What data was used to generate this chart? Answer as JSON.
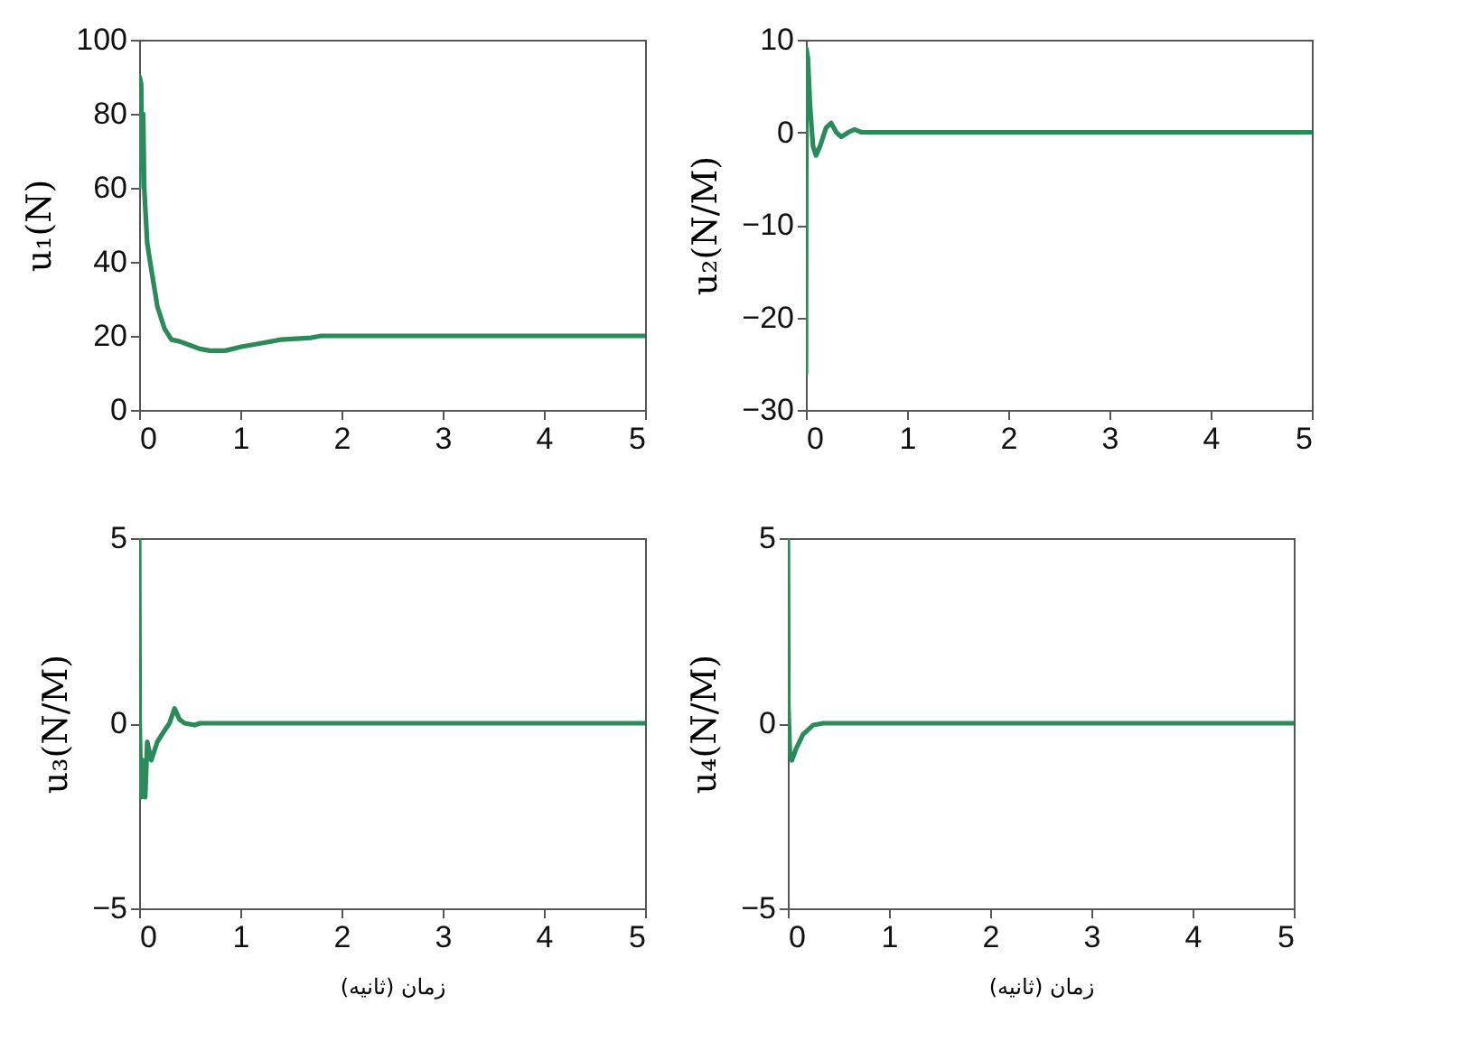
{
  "chart_data": [
    {
      "type": "line",
      "ylabel": "u₁(N)",
      "xlim": [
        0,
        5
      ],
      "xticks": [
        0,
        1,
        2,
        3,
        4,
        5
      ],
      "ylim": [
        0,
        100
      ],
      "yticks": [
        0,
        20,
        40,
        60,
        80,
        100
      ],
      "grid": false,
      "x": [
        0,
        0.005,
        0.02,
        0.03,
        0.04,
        0.05,
        0.08,
        0.12,
        0.18,
        0.25,
        0.32,
        0.4,
        0.5,
        0.6,
        0.7,
        0.85,
        1,
        1.2,
        1.4,
        1.7,
        1.8,
        2.5,
        5
      ],
      "series": [
        {
          "color": "#2a8a5a",
          "values": [
            60,
            90,
            88,
            65,
            80,
            60,
            45,
            38,
            28,
            22,
            19,
            18.5,
            17.5,
            16.5,
            16,
            16,
            17,
            18,
            19,
            19.5,
            20,
            20,
            20
          ]
        }
      ]
    },
    {
      "type": "line",
      "ylabel": "u₂(N/M)",
      "xlim": [
        0,
        5
      ],
      "xticks": [
        0,
        1,
        2,
        3,
        4,
        5
      ],
      "ylim": [
        -30,
        10
      ],
      "yticks": [
        -30,
        -20,
        -10,
        0,
        10
      ],
      "grid": false,
      "x": [
        0,
        0.005,
        0.02,
        0.04,
        0.07,
        0.1,
        0.14,
        0.2,
        0.25,
        0.3,
        0.35,
        0.42,
        0.48,
        0.55,
        5
      ],
      "series": [
        {
          "color": "#2a8a5a",
          "values": [
            -26,
            9,
            8,
            3,
            -1.5,
            -2.5,
            -1.5,
            0.5,
            1,
            0,
            -0.5,
            0,
            0.3,
            0,
            0
          ]
        }
      ]
    },
    {
      "type": "line",
      "ylabel": "u₃(N/M)",
      "xlabel": "زمان (ثانیه)",
      "xlim": [
        0,
        5
      ],
      "xticks": [
        0,
        1,
        2,
        3,
        4,
        5
      ],
      "ylim": [
        -5,
        5
      ],
      "yticks": [
        -5,
        0,
        5
      ],
      "grid": false,
      "x": [
        0,
        0.005,
        0.02,
        0.04,
        0.06,
        0.08,
        0.12,
        0.18,
        0.25,
        0.3,
        0.35,
        0.4,
        0.45,
        0.55,
        0.6,
        5
      ],
      "series": [
        {
          "color": "#2a8a5a",
          "values": [
            5,
            0,
            -2,
            -1,
            -2,
            -0.5,
            -1,
            -0.5,
            -0.2,
            0,
            0.4,
            0.1,
            0,
            -0.05,
            0,
            0
          ]
        }
      ]
    },
    {
      "type": "line",
      "ylabel": "u₄(N/M)",
      "xlabel": "زمان (ثانیه)",
      "xlim": [
        0,
        5
      ],
      "xticks": [
        0,
        1,
        2,
        3,
        4,
        5
      ],
      "ylim": [
        -5,
        5
      ],
      "yticks": [
        -5,
        0,
        5
      ],
      "grid": false,
      "x": [
        0,
        0.005,
        0.02,
        0.04,
        0.08,
        0.15,
        0.25,
        0.35,
        5
      ],
      "series": [
        {
          "color": "#2a8a5a",
          "values": [
            5,
            0.5,
            -0.8,
            -1,
            -0.7,
            -0.3,
            -0.05,
            0,
            0
          ]
        }
      ]
    }
  ]
}
